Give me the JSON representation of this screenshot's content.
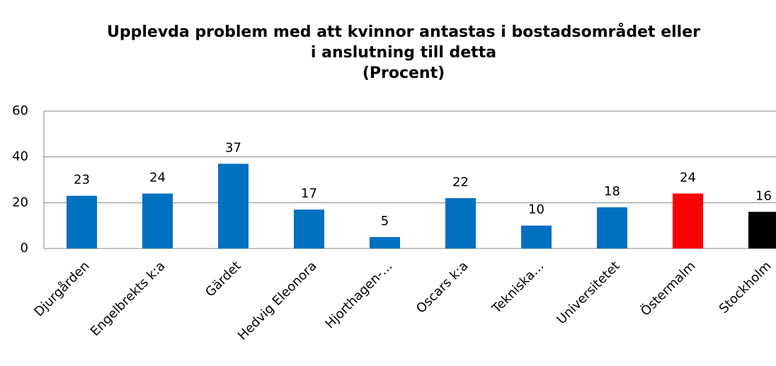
{
  "chart_data": {
    "type": "bar",
    "title": [
      "Upplevda problem med att kvinnor antastas i bostadsområdet eller",
      "i anslutning till detta"
    ],
    "subtitle": "(Procent)",
    "categories": [
      "Djurgården",
      "Engelbrekts k:a",
      "Gärdet",
      "Hedvig Eleonora",
      "Hjorthagen-…",
      "Oscars k:a",
      "Tekniska…",
      "Universitetet",
      "Östermalm",
      "Stockholm"
    ],
    "values": [
      23,
      24,
      37,
      17,
      5,
      22,
      10,
      18,
      24,
      16
    ],
    "colors": [
      "#0070c0",
      "#0070c0",
      "#0070c0",
      "#0070c0",
      "#0070c0",
      "#0070c0",
      "#0070c0",
      "#0070c0",
      "#ff0000",
      "#000000"
    ],
    "ylim": [
      0,
      60
    ],
    "yticks": [
      0,
      20,
      40,
      60
    ],
    "grid": true
  }
}
